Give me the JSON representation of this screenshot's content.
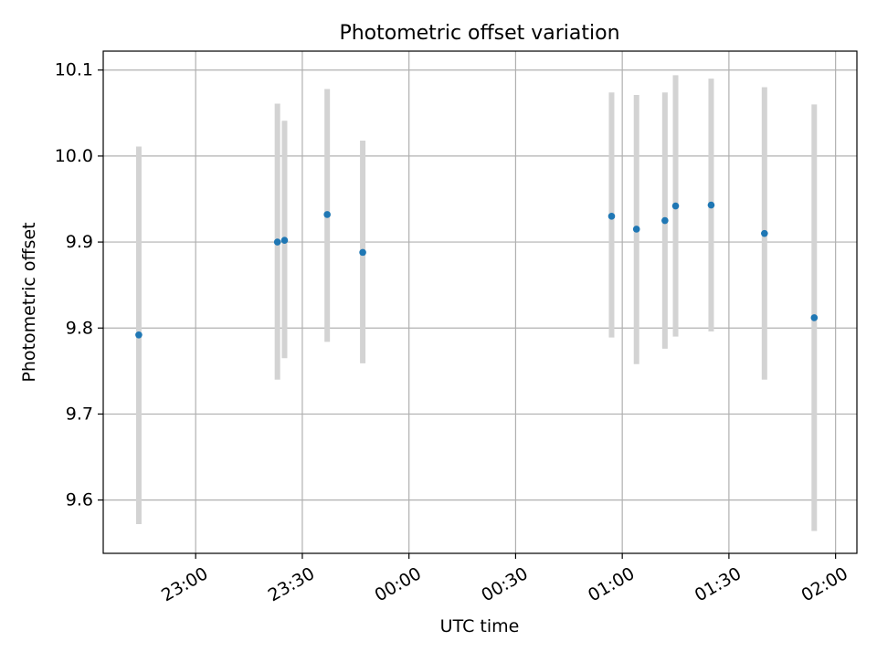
{
  "chart_data": {
    "type": "scatter",
    "title": "Photometric offset variation",
    "xlabel": "UTC time",
    "ylabel": "Photometric offset",
    "x_ticks": [
      "23:00",
      "23:30",
      "00:00",
      "00:30",
      "01:00",
      "01:30",
      "02:00"
    ],
    "y_ticks": [
      "9.6",
      "9.7",
      "9.8",
      "9.9",
      "10.0",
      "10.1"
    ],
    "xlim": [
      "22:34",
      "02:06"
    ],
    "ylim": [
      9.538,
      10.122
    ],
    "grid": true,
    "x": [
      "22:44",
      "23:23",
      "23:25",
      "23:37",
      "23:47",
      "00:57",
      "01:04",
      "01:12",
      "01:15",
      "01:25",
      "01:40",
      "01:54"
    ],
    "y": [
      9.792,
      9.9,
      9.902,
      9.932,
      9.888,
      9.93,
      9.915,
      9.925,
      9.942,
      9.943,
      9.91,
      9.812
    ],
    "y_err_low": [
      9.572,
      9.74,
      9.765,
      9.784,
      9.759,
      9.789,
      9.758,
      9.776,
      9.79,
      9.796,
      9.74,
      9.564
    ],
    "y_err_high": [
      10.011,
      10.061,
      10.041,
      10.078,
      10.018,
      10.074,
      10.071,
      10.074,
      10.094,
      10.09,
      10.08,
      10.06
    ],
    "colors": {
      "point": "#1f77b4",
      "errorbar": "#d3d3d3",
      "grid": "#b0b0b0",
      "axes": "#000000"
    }
  }
}
